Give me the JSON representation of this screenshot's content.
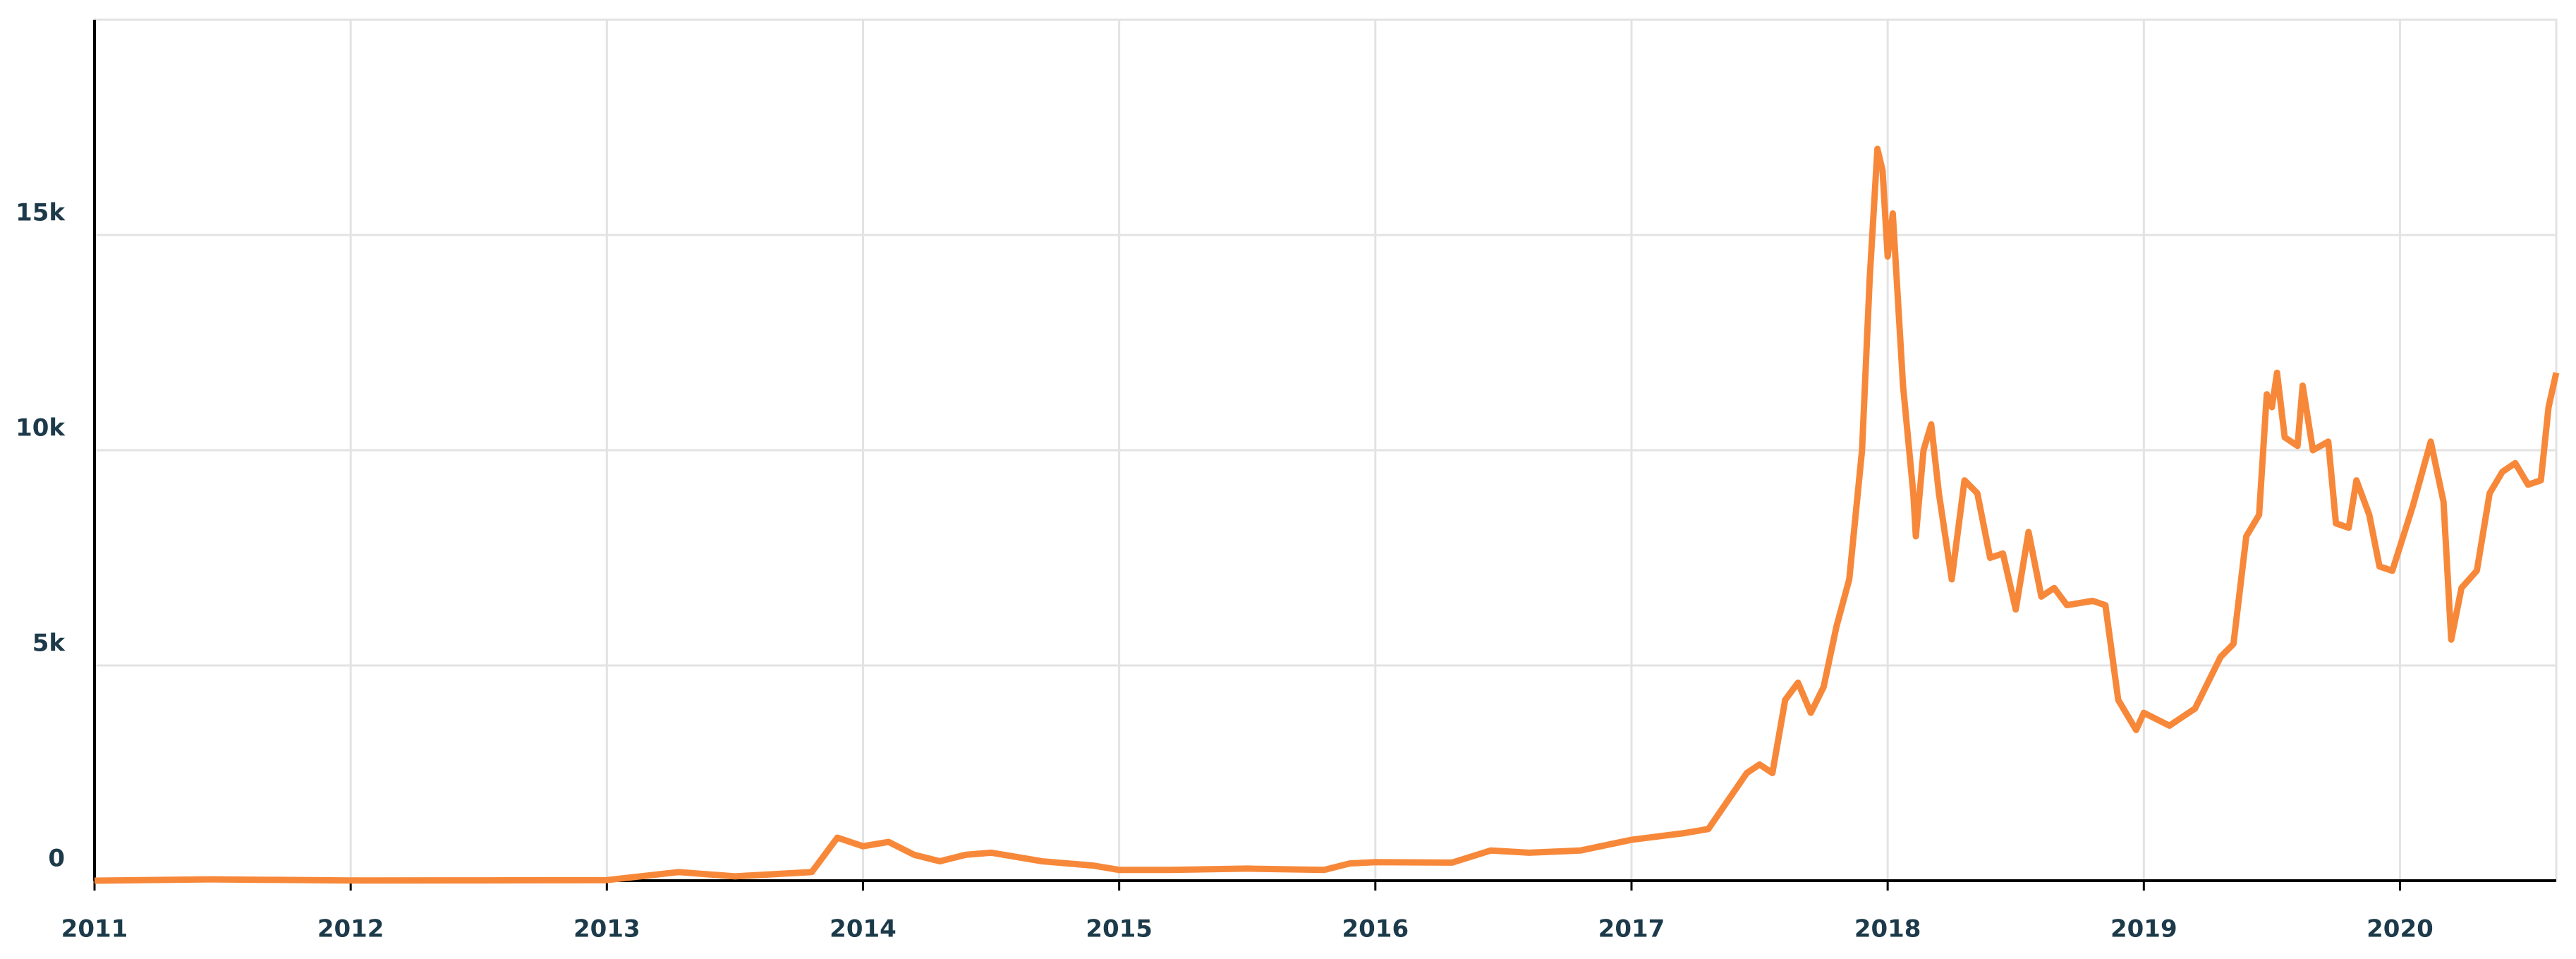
{
  "chart_data": {
    "type": "line",
    "x": [
      2011.0,
      2011.45,
      2012.0,
      2012.5,
      2013.0,
      2013.28,
      2013.5,
      2013.8,
      2013.9,
      2013.95,
      2014.0,
      2014.1,
      2014.2,
      2014.3,
      2014.4,
      2014.5,
      2014.7,
      2014.9,
      2015.0,
      2015.2,
      2015.5,
      2015.8,
      2015.9,
      2016.0,
      2016.3,
      2016.45,
      2016.6,
      2016.8,
      2017.0,
      2017.2,
      2017.3,
      2017.45,
      2017.5,
      2017.55,
      2017.6,
      2017.65,
      2017.7,
      2017.75,
      2017.8,
      2017.85,
      2017.9,
      2017.93,
      2017.96,
      2017.98,
      2018.0,
      2018.02,
      2018.06,
      2018.1,
      2018.11,
      2018.14,
      2018.17,
      2018.2,
      2018.25,
      2018.3,
      2018.35,
      2018.4,
      2018.45,
      2018.5,
      2018.55,
      2018.6,
      2018.65,
      2018.7,
      2018.8,
      2018.85,
      2018.9,
      2018.97,
      2019.0,
      2019.1,
      2019.15,
      2019.2,
      2019.3,
      2019.35,
      2019.4,
      2019.45,
      2019.48,
      2019.5,
      2019.52,
      2019.55,
      2019.6,
      2019.62,
      2019.66,
      2019.72,
      2019.75,
      2019.8,
      2019.83,
      2019.88,
      2019.92,
      2019.97,
      2020.05,
      2020.12,
      2020.17,
      2020.2,
      2020.24,
      2020.3,
      2020.35,
      2020.4,
      2020.45,
      2020.5,
      2020.55,
      2020.58,
      2020.61
    ],
    "series": [
      {
        "color": "#f7883a",
        "values": [
          1,
          30,
          5,
          7,
          13,
          200,
          100,
          200,
          1000,
          900,
          800,
          900,
          600,
          450,
          600,
          650,
          450,
          350,
          250,
          250,
          280,
          250,
          400,
          430,
          420,
          700,
          650,
          700,
          950,
          1100,
          1200,
          2500,
          2700,
          2500,
          4200,
          4600,
          3900,
          4500,
          5900,
          7000,
          10000,
          14000,
          17000,
          16500,
          14500,
          15500,
          11500,
          9000,
          8000,
          10000,
          10600,
          9000,
          7000,
          9300,
          9000,
          7500,
          7600,
          6300,
          8100,
          6600,
          6800,
          6400,
          6500,
          6400,
          4200,
          3500,
          3900,
          3600,
          3800,
          4000,
          5200,
          5500,
          8000,
          8500,
          11300,
          11000,
          11800,
          10300,
          10100,
          11500,
          10000,
          10200,
          8300,
          8200,
          9300,
          8500,
          7300,
          7200,
          8700,
          10200,
          8800,
          5600,
          6800,
          7200,
          9000,
          9500,
          9700,
          9200,
          9300,
          11000,
          11800
        ]
      }
    ],
    "xlim": [
      2011,
      2020.61
    ],
    "xticks": [
      2011,
      2012,
      2013,
      2014,
      2015,
      2016,
      2017,
      2018,
      2019,
      2020
    ],
    "ylim": [
      0,
      20000
    ],
    "yticks": [
      0,
      {
        "value": 5000,
        "label": "5k"
      },
      {
        "value": 10000,
        "label": "10k"
      },
      {
        "value": 15000,
        "label": "15k"
      }
    ],
    "grid": true
  }
}
